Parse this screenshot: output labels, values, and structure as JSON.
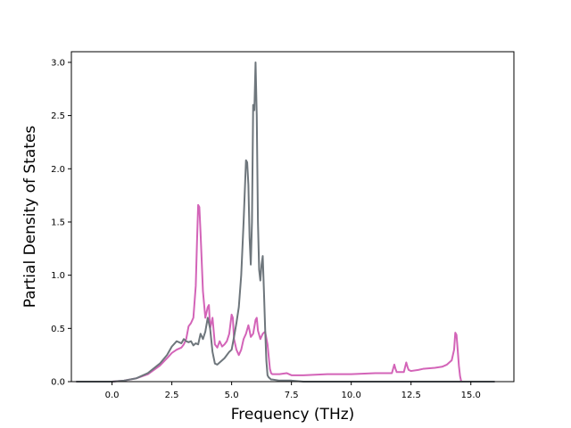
{
  "chart_data": {
    "type": "line",
    "title": "",
    "xlabel": "Frequency (THz)",
    "ylabel": "Partial Density of States",
    "xlim": [
      -1.7,
      16.8
    ],
    "ylim": [
      0.0,
      3.1
    ],
    "xticks": [
      0.0,
      2.5,
      5.0,
      7.5,
      10.0,
      12.5,
      15.0
    ],
    "xtick_labels": [
      "0.0",
      "2.5",
      "5.0",
      "7.5",
      "10.0",
      "12.5",
      "15.0"
    ],
    "yticks": [
      0.0,
      0.5,
      1.0,
      1.5,
      2.0,
      2.5,
      3.0
    ],
    "ytick_labels": [
      "0.0",
      "0.5",
      "1.0",
      "1.5",
      "2.0",
      "2.5",
      "3.0"
    ],
    "grid": false,
    "legend": "none",
    "series": [
      {
        "color": "#d364b8",
        "x": [
          -1.5,
          0.0,
          0.5,
          1.0,
          1.5,
          2.0,
          2.3,
          2.5,
          2.7,
          2.9,
          3.0,
          3.1,
          3.2,
          3.3,
          3.4,
          3.5,
          3.55,
          3.6,
          3.65,
          3.7,
          3.8,
          3.9,
          4.0,
          4.05,
          4.1,
          4.2,
          4.3,
          4.4,
          4.5,
          4.6,
          4.7,
          4.8,
          4.9,
          5.0,
          5.05,
          5.1,
          5.2,
          5.3,
          5.4,
          5.5,
          5.6,
          5.7,
          5.75,
          5.8,
          5.9,
          6.0,
          6.05,
          6.1,
          6.2,
          6.3,
          6.4,
          6.5,
          6.6,
          6.65,
          6.7,
          6.8,
          7.0,
          7.3,
          7.5,
          8.0,
          9.0,
          10.0,
          11.0,
          11.7,
          11.8,
          11.85,
          11.9,
          12.0,
          12.2,
          12.3,
          12.35,
          12.4,
          12.5,
          12.8,
          13.0,
          13.5,
          13.8,
          14.0,
          14.1,
          14.2,
          14.3,
          14.35,
          14.4,
          14.45,
          14.5,
          14.55,
          14.6,
          16.0
        ],
        "y": [
          0.0,
          0.0,
          0.01,
          0.03,
          0.07,
          0.15,
          0.22,
          0.27,
          0.3,
          0.32,
          0.35,
          0.4,
          0.52,
          0.55,
          0.6,
          0.9,
          1.3,
          1.66,
          1.64,
          1.4,
          0.85,
          0.6,
          0.7,
          0.72,
          0.5,
          0.6,
          0.35,
          0.32,
          0.38,
          0.33,
          0.35,
          0.38,
          0.45,
          0.63,
          0.6,
          0.4,
          0.3,
          0.25,
          0.3,
          0.4,
          0.45,
          0.53,
          0.48,
          0.42,
          0.45,
          0.58,
          0.6,
          0.48,
          0.4,
          0.45,
          0.47,
          0.35,
          0.12,
          0.08,
          0.07,
          0.07,
          0.07,
          0.08,
          0.06,
          0.06,
          0.07,
          0.07,
          0.08,
          0.08,
          0.16,
          0.12,
          0.09,
          0.09,
          0.09,
          0.18,
          0.14,
          0.11,
          0.1,
          0.11,
          0.12,
          0.13,
          0.14,
          0.16,
          0.18,
          0.2,
          0.3,
          0.46,
          0.44,
          0.3,
          0.15,
          0.05,
          0.0,
          0.0
        ]
      },
      {
        "color": "#6e767c",
        "x": [
          -1.5,
          0.0,
          0.5,
          1.0,
          1.5,
          2.0,
          2.3,
          2.5,
          2.7,
          2.8,
          2.9,
          3.0,
          3.1,
          3.2,
          3.3,
          3.4,
          3.5,
          3.6,
          3.7,
          3.8,
          3.9,
          4.0,
          4.1,
          4.2,
          4.3,
          4.4,
          4.5,
          4.7,
          4.9,
          5.0,
          5.1,
          5.2,
          5.3,
          5.4,
          5.5,
          5.6,
          5.65,
          5.7,
          5.75,
          5.8,
          5.85,
          5.9,
          5.95,
          6.0,
          6.05,
          6.1,
          6.15,
          6.2,
          6.25,
          6.3,
          6.35,
          6.4,
          6.45,
          6.5,
          6.55,
          6.6,
          6.65,
          6.7,
          7.0,
          7.5,
          8.0,
          9.0,
          10.0,
          11.0,
          12.0,
          13.0,
          14.0,
          14.5,
          15.0,
          16.0
        ],
        "y": [
          0.0,
          0.0,
          0.01,
          0.03,
          0.08,
          0.17,
          0.25,
          0.33,
          0.38,
          0.37,
          0.36,
          0.4,
          0.38,
          0.37,
          0.38,
          0.34,
          0.36,
          0.35,
          0.45,
          0.4,
          0.47,
          0.6,
          0.5,
          0.28,
          0.17,
          0.16,
          0.18,
          0.22,
          0.28,
          0.3,
          0.42,
          0.55,
          0.7,
          1.0,
          1.5,
          2.08,
          2.06,
          1.85,
          1.35,
          1.1,
          1.5,
          2.6,
          2.55,
          3.0,
          2.5,
          1.5,
          1.05,
          0.95,
          1.1,
          1.18,
          0.85,
          0.5,
          0.2,
          0.06,
          0.04,
          0.03,
          0.02,
          0.02,
          0.01,
          0.01,
          0.0,
          0.0,
          0.0,
          0.0,
          0.0,
          0.0,
          0.0,
          0.0,
          0.0,
          0.0
        ]
      }
    ]
  }
}
